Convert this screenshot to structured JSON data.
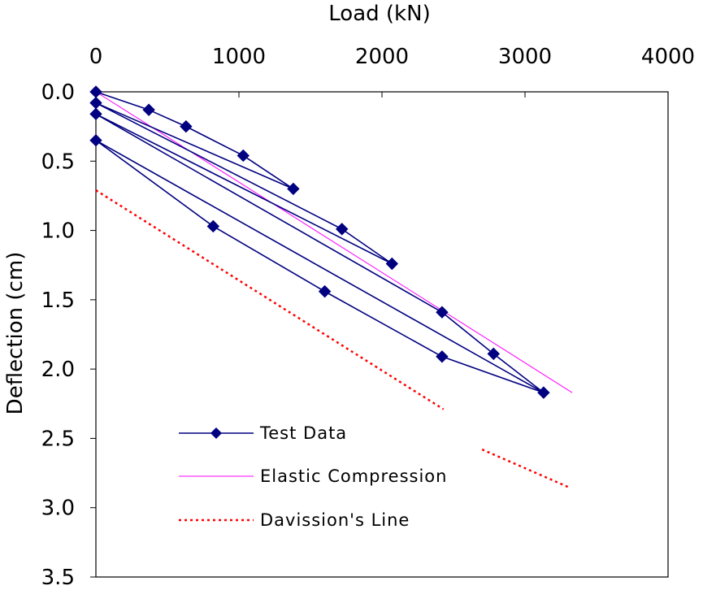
{
  "chart_data": {
    "type": "line",
    "xlabel": "Load (kN)",
    "ylabel": "Deflection (cm)",
    "xlim": [
      0,
      4000
    ],
    "ylim": [
      0,
      3.5
    ],
    "y_inverted": true,
    "x_axis_position": "top",
    "grid": false,
    "legend_position": "bottom-left inside plot",
    "x_ticks": [
      0,
      1000,
      2000,
      3000,
      4000
    ],
    "x_tick_labels": [
      "0",
      "1000",
      "2000",
      "3000",
      "4000"
    ],
    "y_ticks": [
      0,
      0.5,
      1,
      1.5,
      2,
      2.5,
      3,
      3.5
    ],
    "y_tick_labels": [
      "0.0",
      "0.5",
      "1.0",
      "1.5",
      "2.0",
      "2.5",
      "3.0",
      "3.5"
    ],
    "series": [
      {
        "name": "Test Data",
        "style": "line-with-diamond-markers",
        "color": "#000080",
        "points": [
          [
            0,
            0.0
          ],
          [
            370,
            0.13
          ],
          [
            630,
            0.25
          ],
          [
            1030,
            0.46
          ],
          [
            1380,
            0.7
          ],
          [
            0,
            0.08
          ],
          [
            1720,
            0.99
          ],
          [
            2070,
            1.24
          ],
          [
            0,
            0.16
          ],
          [
            2420,
            1.59
          ],
          [
            2780,
            1.89
          ],
          [
            3130,
            2.17
          ],
          [
            0,
            0.35
          ],
          [
            820,
            0.97
          ],
          [
            1600,
            1.44
          ],
          [
            2420,
            1.91
          ]
        ],
        "segments": [
          [
            0,
            1
          ],
          [
            1,
            2
          ],
          [
            2,
            3
          ],
          [
            3,
            4
          ],
          [
            4,
            5
          ],
          [
            5,
            6
          ],
          [
            6,
            7
          ],
          [
            7,
            8
          ],
          [
            8,
            9
          ],
          [
            9,
            10
          ],
          [
            10,
            11
          ],
          [
            11,
            12
          ],
          [
            12,
            13
          ],
          [
            13,
            14
          ],
          [
            14,
            15
          ],
          [
            15,
            11
          ]
        ]
      },
      {
        "name": "Elastic Compression",
        "style": "thin-line",
        "color": "#ff00ff",
        "points": [
          [
            0,
            0.0
          ],
          [
            3330,
            2.17
          ]
        ]
      },
      {
        "name": "Davission's Line",
        "style": "dotted-line",
        "color": "#ff0000",
        "points": [
          [
            0,
            0.71
          ],
          [
            2430,
            2.29
          ],
          [
            2700,
            2.58
          ],
          [
            3300,
            2.85
          ]
        ],
        "gaps": [
          [
            1,
            2
          ]
        ]
      }
    ]
  }
}
